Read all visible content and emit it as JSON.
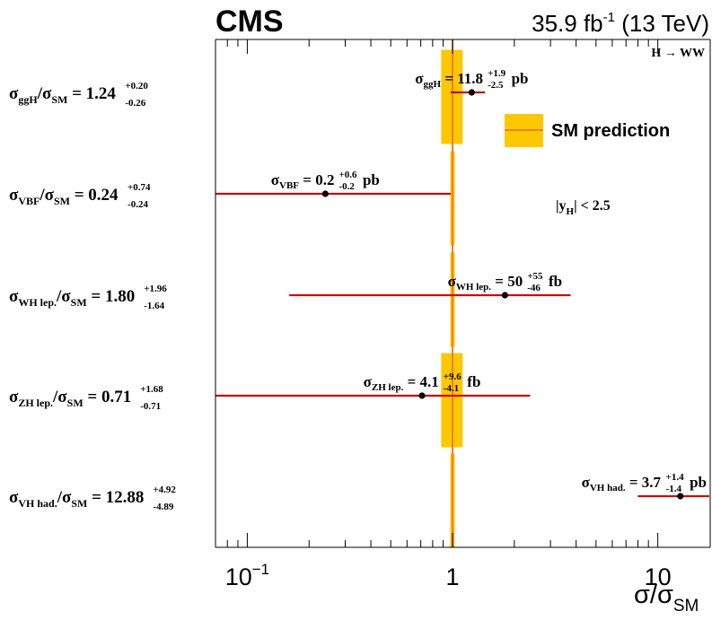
{
  "chart_data": {
    "type": "scatter",
    "experiment": "CMS",
    "lumi": "35.9 fb",
    "lumi_sup": "-1",
    "energy": " (13 TeV)",
    "channel": "H",
    "channel_arrow": "→",
    "channel_decay": "WW",
    "xlabel": "σ/σ",
    "xlabel_sub": "SM",
    "x_scale": "log",
    "xlim": [
      0.07,
      18
    ],
    "x_ticks": [
      {
        "value": 0.1,
        "label": "10",
        "sup": "−1"
      },
      {
        "value": 1,
        "label": "1",
        "sup": ""
      },
      {
        "value": 10,
        "label": "10",
        "sup": ""
      }
    ],
    "legend": {
      "label": "SM prediction",
      "position": "top-right"
    },
    "rapidity_label": "|y",
    "rapidity_sub": "H",
    "rapidity_rest": "| < 2.5",
    "sm_value": 1.0,
    "sigma": "σ",
    "measurements": [
      {
        "label_sub": "ggH",
        "ratio": 1.24,
        "up": "+0.20",
        "down": "-0.26",
        "x": 1.24,
        "xerr_minus": 0.26,
        "xerr_plus": 0.2,
        "xsec_sub": "ggH",
        "xsec": "11.8",
        "xsec_up": "+1.9",
        "xsec_down": "-2.5",
        "unit": "pb",
        "sm_band": [
          0.88,
          1.12
        ]
      },
      {
        "label_sub": "VBF",
        "ratio": 0.24,
        "up": "+0.74",
        "down": "-0.24",
        "x": 0.24,
        "xerr_minus": 0.24,
        "xerr_plus": 0.74,
        "xsec_sub": "VBF",
        "xsec": "0.2",
        "xsec_up": "+0.6",
        "xsec_down": "-0.2",
        "unit": "pb",
        "sm_band": [
          0.975,
          1.025
        ]
      },
      {
        "label_sub": "WH lep.",
        "ratio": 1.8,
        "up": "+1.96",
        "down": "-1.64",
        "x": 1.8,
        "xerr_minus": 1.64,
        "xerr_plus": 1.96,
        "xsec_sub": "WH lep.",
        "xsec": "50",
        "xsec_up": "+55",
        "xsec_down": "-46",
        "unit": "fb",
        "sm_band": [
          0.975,
          1.025
        ]
      },
      {
        "label_sub": "ZH lep.",
        "ratio": 0.71,
        "up": "+1.68",
        "down": "-0.71",
        "x": 0.71,
        "xerr_minus": 0.71,
        "xerr_plus": 1.68,
        "xsec_sub": "ZH lep.",
        "xsec": "4.1",
        "xsec_up": "+9.6",
        "xsec_down": "-4.1",
        "unit": "fb",
        "sm_band": [
          0.88,
          1.12
        ]
      },
      {
        "label_sub": "VH had.",
        "ratio": 12.88,
        "up": "+4.92",
        "down": "-4.89",
        "x": 12.88,
        "xerr_minus": 4.89,
        "xerr_plus": 4.92,
        "xsec_sub": "VH had.",
        "xsec": "3.7",
        "xsec_up": "+1.4",
        "xsec_down": "-1.4",
        "unit": "pb",
        "sm_band": [
          0.975,
          1.025
        ]
      }
    ],
    "colors": {
      "point": "#000000",
      "errorbar": "#c0110e",
      "sm_band": "#fdc800",
      "sm_line": "#f07f2c",
      "frame": "#000000"
    }
  }
}
